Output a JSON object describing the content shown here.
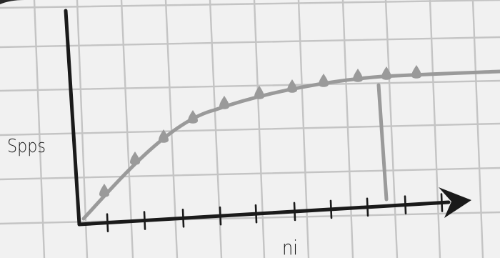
{
  "labels": {
    "y_axis": "Spps",
    "x_axis": "ni"
  },
  "colors": {
    "background": "#f1f1f1",
    "grid": "#c4c4c4",
    "axes": "#1a1a1a",
    "curve": "#9a9a9a"
  },
  "diagram": {
    "x_ticks": 10,
    "curve_markers": 11,
    "marker_shape": "droplet",
    "has_vertical_marker_line": true,
    "has_hand_drawn_grid": true
  }
}
